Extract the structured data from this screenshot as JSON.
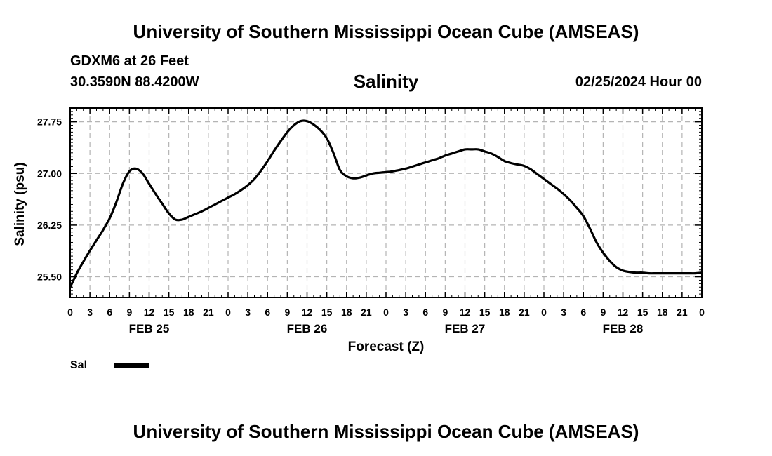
{
  "header": {
    "top_title": "University of Southern Mississippi Ocean Cube (AMSEAS)",
    "station": "GDXM6 at 26 Feet",
    "coordinates": "30.3590N  88.4200W",
    "date": "02/25/2024 Hour 00",
    "bottom_title": "University of Southern Mississippi Ocean Cube (AMSEAS)"
  },
  "chart_data": {
    "type": "line",
    "title": "Salinity",
    "xlabel": "Forecast (Z)",
    "ylabel": "Salinity (psu)",
    "ylim": [
      25.2,
      27.95
    ],
    "y_ticks": [
      "25.50",
      "26.25",
      "27.00",
      "27.75"
    ],
    "y_tick_values": [
      25.5,
      26.25,
      27.0,
      27.75
    ],
    "x_range_hours": [
      0,
      96
    ],
    "x_tick_labels": [
      "0",
      "3",
      "6",
      "9",
      "12",
      "15",
      "18",
      "21",
      "0",
      "3",
      "6",
      "9",
      "12",
      "15",
      "18",
      "21",
      "0",
      "3",
      "6",
      "9",
      "12",
      "15",
      "18",
      "21",
      "0",
      "3",
      "6",
      "9",
      "12",
      "15",
      "18",
      "21",
      "0"
    ],
    "day_labels": [
      {
        "label": "FEB 25",
        "hour": 12
      },
      {
        "label": "FEB 26",
        "hour": 36
      },
      {
        "label": "FEB 27",
        "hour": 60
      },
      {
        "label": "FEB 28",
        "hour": 84
      }
    ],
    "grid": true,
    "legend_position": "bottom-left",
    "series": [
      {
        "name": "Sal",
        "color": "#000000",
        "x": [
          0,
          1,
          2,
          3,
          4,
          5,
          6,
          7,
          8,
          9,
          10,
          11,
          12,
          13,
          14,
          15,
          16,
          17,
          18,
          19,
          20,
          21,
          22,
          23,
          24,
          25,
          26,
          27,
          28,
          29,
          30,
          31,
          32,
          33,
          34,
          35,
          36,
          37,
          38,
          39,
          40,
          41,
          42,
          43,
          44,
          45,
          46,
          47,
          48,
          49,
          50,
          51,
          52,
          53,
          54,
          55,
          56,
          57,
          58,
          59,
          60,
          61,
          62,
          63,
          64,
          65,
          66,
          67,
          68,
          69,
          70,
          71,
          72,
          73,
          74,
          75,
          76,
          77,
          78,
          79,
          80,
          81,
          82,
          83,
          84,
          85,
          86,
          87,
          88,
          89,
          90,
          91,
          92,
          93,
          94,
          95,
          96
        ],
        "values": [
          25.35,
          25.55,
          25.72,
          25.88,
          26.03,
          26.18,
          26.35,
          26.58,
          26.85,
          27.03,
          27.07,
          27.0,
          26.85,
          26.7,
          26.56,
          26.42,
          26.33,
          26.33,
          26.37,
          26.41,
          26.45,
          26.5,
          26.55,
          26.6,
          26.65,
          26.7,
          26.76,
          26.83,
          26.92,
          27.04,
          27.18,
          27.33,
          27.47,
          27.6,
          27.7,
          27.76,
          27.76,
          27.71,
          27.63,
          27.51,
          27.3,
          27.05,
          26.96,
          26.93,
          26.94,
          26.97,
          27.0,
          27.01,
          27.02,
          27.03,
          27.05,
          27.07,
          27.1,
          27.13,
          27.16,
          27.19,
          27.22,
          27.26,
          27.29,
          27.32,
          27.35,
          27.35,
          27.35,
          27.32,
          27.29,
          27.24,
          27.18,
          27.15,
          27.13,
          27.11,
          27.06,
          26.99,
          26.92,
          26.85,
          26.78,
          26.7,
          26.61,
          26.5,
          26.38,
          26.2,
          26.0,
          25.85,
          25.73,
          25.64,
          25.59,
          25.57,
          25.56,
          25.56,
          25.55,
          25.55,
          25.55,
          25.55,
          25.55,
          25.55,
          25.55,
          25.55,
          25.56
        ]
      }
    ]
  }
}
